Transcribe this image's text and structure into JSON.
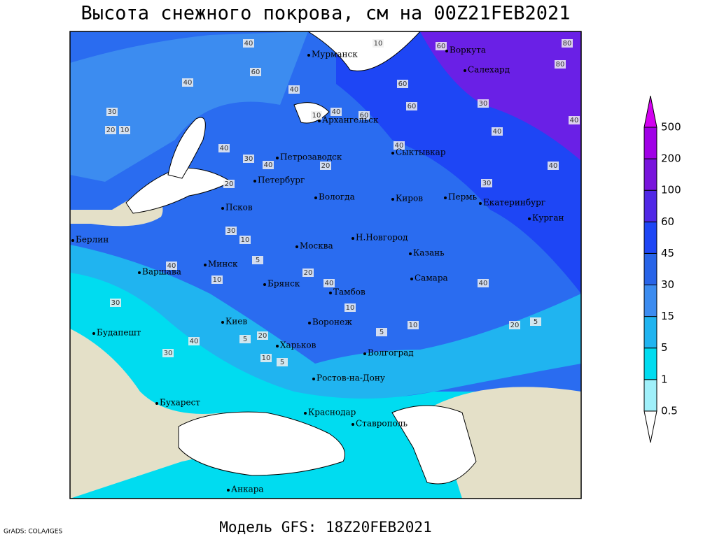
{
  "title": "Высота снежного покрова, см на 00Z21FEB2021",
  "subtitle": "Модель GFS: 18Z20FEB2021",
  "credit": "GrADS: COLA/IGES",
  "legend": {
    "levels": [
      0.5,
      1,
      5,
      15,
      30,
      45,
      60,
      100,
      200,
      500
    ],
    "colors": [
      "#ffffff",
      "#a0f0fa",
      "#00dcf0",
      "#20b4f0",
      "#3c8cf0",
      "#2864e8",
      "#1e46f5",
      "#5028e6",
      "#7814dc",
      "#a000e6",
      "#d200f0"
    ]
  },
  "cities": [
    "Мурманск",
    "Воркута",
    "Салехард",
    "Архангельск",
    "Петрозаводск",
    "Сыктывкар",
    "Петербург",
    "Вологда",
    "Киров",
    "Пермь",
    "Екатеринбург",
    "Курган",
    "Псков",
    "Берлин",
    "Москва",
    "Н.Новгород",
    "Казань",
    "Минск",
    "Варшава",
    "Брянск",
    "Тамбов",
    "Самара",
    "Киев",
    "Воронеж",
    "Будапешт",
    "Харьков",
    "Волгоград",
    "Ростов-на-Дону",
    "Бухарест",
    "Краснодар",
    "Ставрополь",
    "Анкара"
  ],
  "contour_labels": [
    40,
    10,
    60,
    80,
    80,
    60,
    40,
    60,
    40,
    30,
    20,
    10,
    40,
    10,
    60,
    40,
    40,
    40,
    40,
    60,
    30,
    40,
    30,
    20,
    30,
    40,
    20,
    30,
    10,
    5,
    20,
    40,
    10,
    30,
    40,
    40,
    20,
    5,
    10,
    5,
    5,
    20,
    40,
    30,
    10,
    5,
    10
  ]
}
